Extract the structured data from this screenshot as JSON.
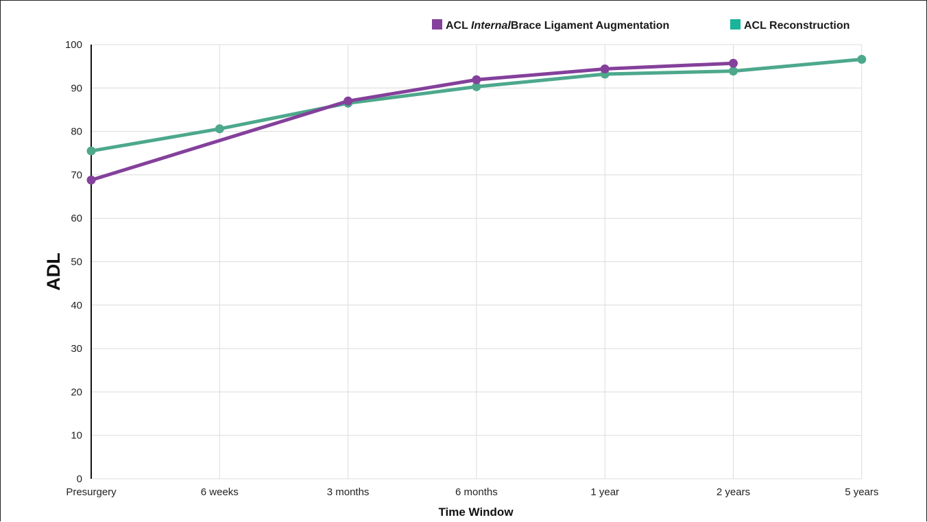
{
  "chart_data": {
    "type": "line",
    "categories": [
      "Presurgery",
      "6 weeks",
      "3 months",
      "6 months",
      "1 year",
      "2 years",
      "5 years"
    ],
    "xlabel": "Time Window",
    "ylabel": "ADL",
    "ylim": [
      0,
      100
    ],
    "yticks": [
      0,
      10,
      20,
      30,
      40,
      50,
      60,
      70,
      80,
      90,
      100
    ],
    "grid": true,
    "legend_position": "top-right",
    "series": [
      {
        "name": "ACL InternalBrace Ligament Augmentation",
        "name_parts": {
          "prefix": "ACL ",
          "italic": "Internal",
          "suffix": "Brace Ligament Augmentation"
        },
        "color": "#84409b",
        "values": [
          68.8,
          null,
          87.0,
          91.9,
          94.4,
          95.7,
          null
        ]
      },
      {
        "name": "ACL Reconstruction",
        "color": "#4da88c",
        "legend_color": "#19b49a",
        "values": [
          75.5,
          80.6,
          86.5,
          90.3,
          93.2,
          93.9,
          96.6
        ]
      }
    ]
  }
}
